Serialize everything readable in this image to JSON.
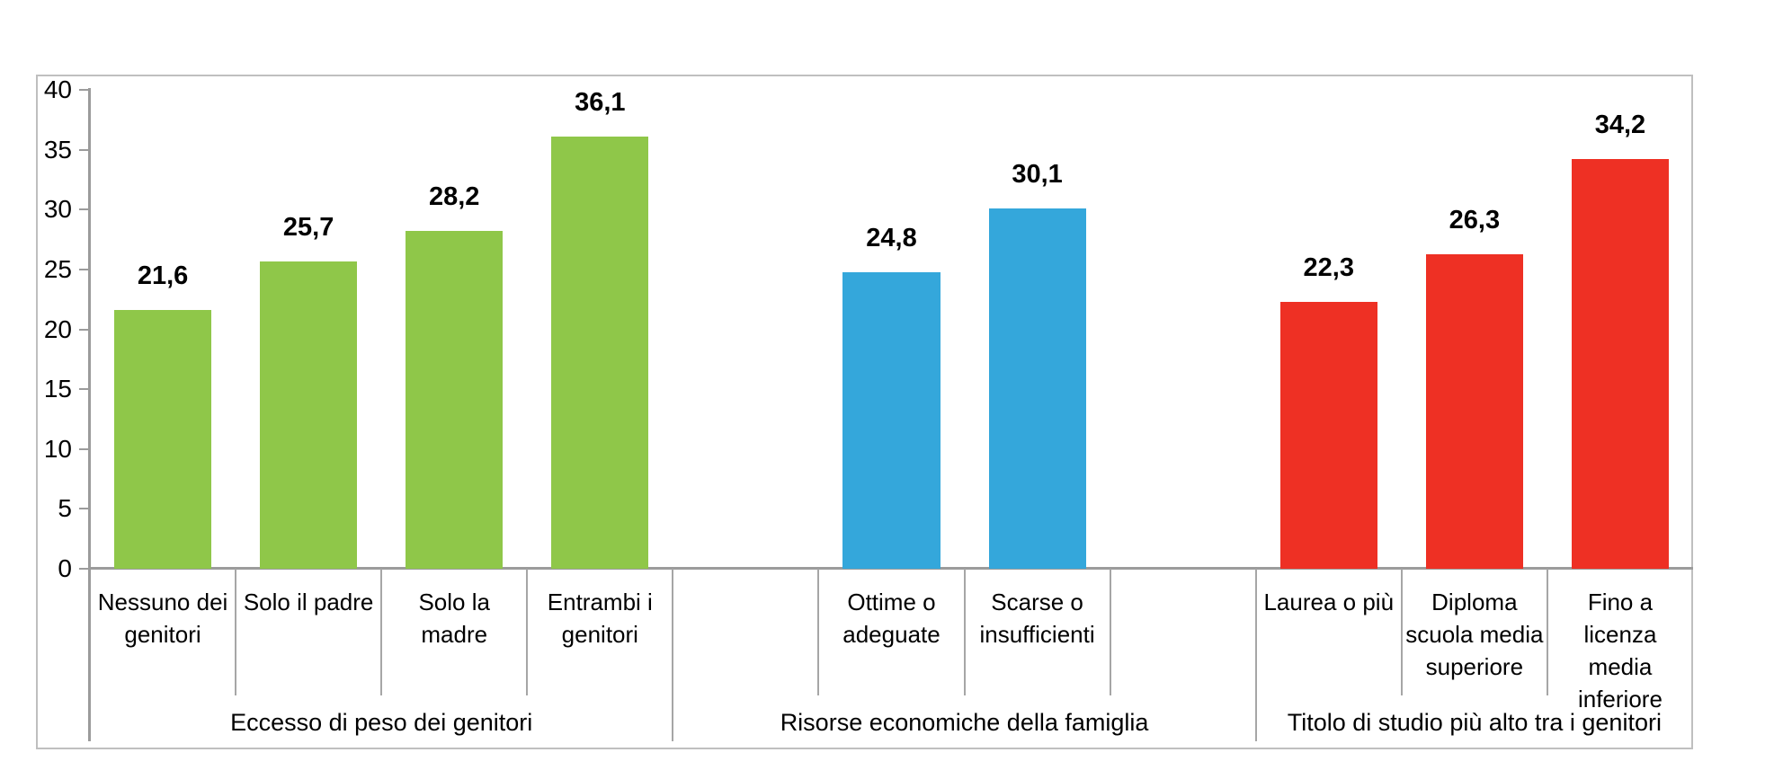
{
  "chart_data": {
    "type": "bar",
    "title": "",
    "xlabel": "",
    "ylabel": "",
    "ylim": [
      0,
      40
    ],
    "yticks": [
      0,
      5,
      10,
      15,
      20,
      25,
      30,
      35,
      40
    ],
    "ytick_labels": [
      "0",
      "5",
      "10",
      "15",
      "20",
      "25",
      "30",
      "35",
      "40"
    ],
    "grid": false,
    "legend": "none",
    "decimal_separator": ",",
    "groups": [
      {
        "label": "Eccesso di peso dei genitori",
        "color": "#8fc749",
        "leading_empty_cells": 0,
        "trailing_empty_cells": 0,
        "bars": [
          {
            "category": "Nessuno dei\ngenitori",
            "value": 21.6,
            "value_label": "21,6"
          },
          {
            "category": "Solo il padre",
            "value": 25.7,
            "value_label": "25,7"
          },
          {
            "category": "Solo la\nmadre",
            "value": 28.2,
            "value_label": "28,2"
          },
          {
            "category": "Entrambi i\ngenitori",
            "value": 36.1,
            "value_label": "36,1"
          }
        ]
      },
      {
        "label": "Risorse economiche della famiglia",
        "color": "#34a7db",
        "leading_empty_cells": 1,
        "trailing_empty_cells": 1,
        "bars": [
          {
            "category": "Ottime o\nadeguate",
            "value": 24.8,
            "value_label": "24,8"
          },
          {
            "category": "Scarse o\ninsufficienti",
            "value": 30.1,
            "value_label": "30,1"
          }
        ]
      },
      {
        "label": "Titolo di studio più alto tra i genitori",
        "color": "#ee3024",
        "leading_empty_cells": 0,
        "trailing_empty_cells": 0,
        "bars": [
          {
            "category": "Laurea o più",
            "value": 22.3,
            "value_label": "22,3"
          },
          {
            "category": "Diploma\nscuola media\nsuperiore",
            "value": 26.3,
            "value_label": "26,3"
          },
          {
            "category": "Fino a\nlicenza\nmedia\ninferiore",
            "value": 34.2,
            "value_label": "34,2"
          }
        ]
      }
    ]
  }
}
